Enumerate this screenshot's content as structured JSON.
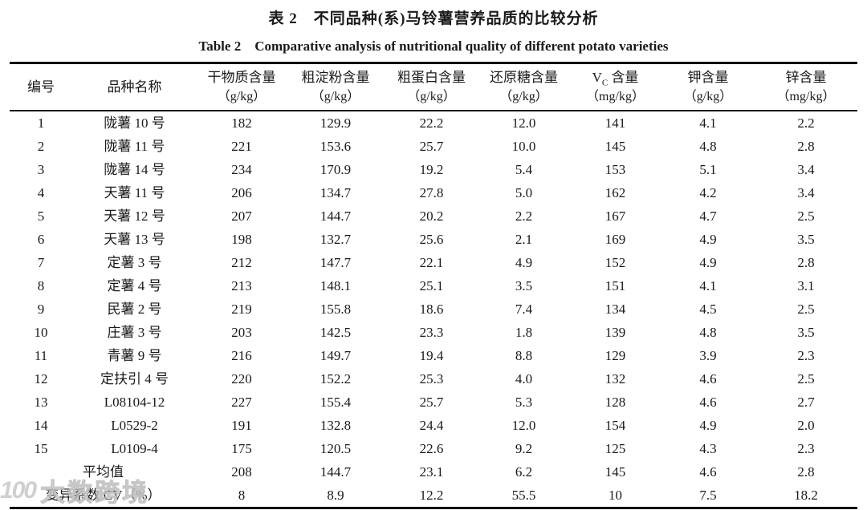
{
  "title": {
    "zh": "表 2　不同品种(系)马铃薯营养品质的比较分析",
    "en": "Table 2　Comparative analysis of nutritional quality of different potato varieties"
  },
  "table": {
    "headers": [
      {
        "line1": "编号",
        "line2": ""
      },
      {
        "line1": "品种名称",
        "line2": ""
      },
      {
        "line1": "干物质含量",
        "line2": "（g/kg）"
      },
      {
        "line1": "粗淀粉含量",
        "line2": "（g/kg）"
      },
      {
        "line1": "粗蛋白含量",
        "line2": "（g/kg）"
      },
      {
        "line1": "还原糖含量",
        "line2": "（g/kg）"
      },
      {
        "line1_parts": {
          "v": "V",
          "sub": "C",
          "rest": " 含量"
        },
        "line2": "（mg/kg）"
      },
      {
        "line1": "钾含量",
        "line2": "（g/kg）"
      },
      {
        "line1": "锌含量",
        "line2": "（mg/kg）"
      }
    ],
    "rows": [
      [
        "1",
        "陇薯 10 号",
        "182",
        "129.9",
        "22.2",
        "12.0",
        "141",
        "4.1",
        "2.2"
      ],
      [
        "2",
        "陇薯 11 号",
        "221",
        "153.6",
        "25.7",
        "10.0",
        "145",
        "4.8",
        "2.8"
      ],
      [
        "3",
        "陇薯 14 号",
        "234",
        "170.9",
        "19.2",
        "5.4",
        "153",
        "5.1",
        "3.4"
      ],
      [
        "4",
        "天薯 11 号",
        "206",
        "134.7",
        "27.8",
        "5.0",
        "162",
        "4.2",
        "3.4"
      ],
      [
        "5",
        "天薯 12 号",
        "207",
        "144.7",
        "20.2",
        "2.2",
        "167",
        "4.7",
        "2.5"
      ],
      [
        "6",
        "天薯 13 号",
        "198",
        "132.7",
        "25.6",
        "2.1",
        "169",
        "4.9",
        "3.5"
      ],
      [
        "7",
        "定薯 3 号",
        "212",
        "147.7",
        "22.1",
        "4.9",
        "152",
        "4.9",
        "2.8"
      ],
      [
        "8",
        "定薯 4 号",
        "213",
        "148.1",
        "25.1",
        "3.5",
        "151",
        "4.1",
        "3.1"
      ],
      [
        "9",
        "民薯 2 号",
        "219",
        "155.8",
        "18.6",
        "7.4",
        "134",
        "4.5",
        "2.5"
      ],
      [
        "10",
        "庄薯 3 号",
        "203",
        "142.5",
        "23.3",
        "1.8",
        "139",
        "4.8",
        "3.5"
      ],
      [
        "11",
        "青薯 9 号",
        "216",
        "149.7",
        "19.4",
        "8.8",
        "129",
        "3.9",
        "2.3"
      ],
      [
        "12",
        "定扶引 4 号",
        "220",
        "152.2",
        "25.3",
        "4.0",
        "132",
        "4.6",
        "2.5"
      ],
      [
        "13",
        "L08104-12",
        "227",
        "155.4",
        "25.7",
        "5.3",
        "128",
        "4.6",
        "2.7"
      ],
      [
        "14",
        "L0529-2",
        "191",
        "132.8",
        "24.4",
        "12.0",
        "154",
        "4.9",
        "2.0"
      ],
      [
        "15",
        "L0109-4",
        "175",
        "120.5",
        "22.6",
        "9.2",
        "125",
        "4.3",
        "2.3"
      ]
    ],
    "summary_rows": [
      {
        "label": "平均值",
        "values": [
          "208",
          "144.7",
          "23.1",
          "6.2",
          "145",
          "4.6",
          "2.8"
        ]
      },
      {
        "label": "变异系数 CV（%）",
        "values": [
          "8",
          "8.9",
          "12.2",
          "55.5",
          "10",
          "7.5",
          "18.2"
        ]
      }
    ]
  },
  "watermark": {
    "logo": "100",
    "text": "大数跨境"
  }
}
